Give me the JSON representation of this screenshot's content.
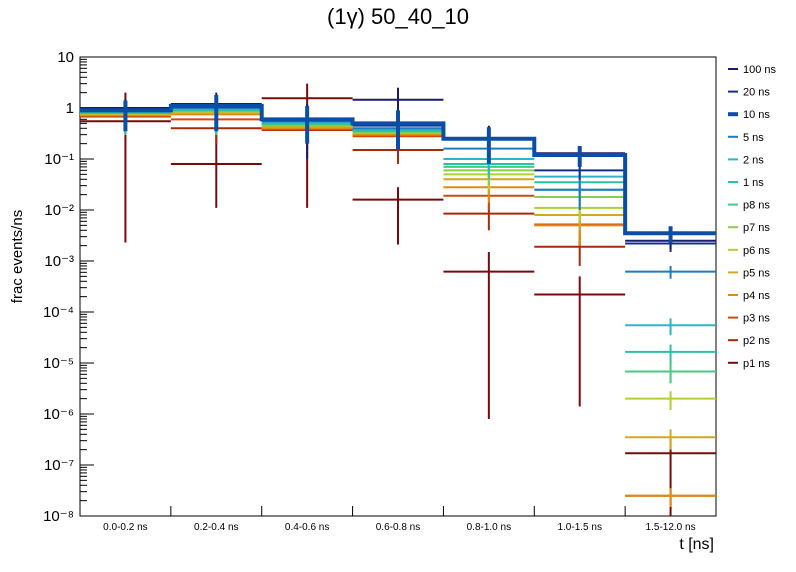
{
  "chart_data": {
    "type": "step-histogram",
    "title": "(1γ) 50_40_10",
    "xlabel": "t [ns]",
    "ylabel": "frac events/ns",
    "yscale": "log",
    "ylim": [
      1e-08,
      10
    ],
    "y_tick_labels": [
      "10⁻⁸",
      "10⁻⁷",
      "10⁻⁶",
      "10⁻⁵",
      "10⁻⁴",
      "10⁻³",
      "10⁻²",
      "10⁻¹",
      "1",
      "10"
    ],
    "y_tick_exponents": [
      -8,
      -7,
      -6,
      -5,
      -4,
      -3,
      -2,
      -1,
      0,
      1
    ],
    "categories": [
      "0.0-0.2 ns",
      "0.2-0.4 ns",
      "0.4-0.6 ns",
      "0.6-0.8 ns",
      "0.8-1.0 ns",
      "1.0-1.5 ns",
      "1.5-12.0 ns"
    ],
    "legend_position": "right",
    "series": [
      {
        "name": "100 ns",
        "color": "#1a1a6e",
        "values": [
          1.0,
          1.2,
          0.6,
          1.45,
          0.25,
          0.13,
          0.0025
        ],
        "width": 2,
        "err_lo": [
          0.4,
          0.4,
          0.1,
          0.15,
          0.1,
          0.09,
          0.0017
        ],
        "err_hi": [
          1.5,
          2.0,
          1.2,
          2.5,
          0.45,
          0.17,
          0.0035
        ]
      },
      {
        "name": "20 ns",
        "color": "#13318a",
        "values": [
          0.95,
          1.15,
          0.58,
          0.45,
          0.25,
          0.06,
          0.0022
        ],
        "width": 2,
        "err_lo": [
          0.4,
          0.4,
          0.2,
          0.15,
          0.1,
          0.04,
          0.0015
        ],
        "err_hi": [
          1.5,
          1.8,
          1.0,
          0.8,
          0.4,
          0.09,
          0.003
        ]
      },
      {
        "name": "10 ns",
        "color": "#0b4ea8",
        "values": [
          0.9,
          1.1,
          0.6,
          0.5,
          0.25,
          0.12,
          0.0035
        ],
        "width": 4,
        "err_lo": [
          0.35,
          0.35,
          0.2,
          0.15,
          0.08,
          0.07,
          0.0022
        ],
        "err_hi": [
          1.4,
          1.8,
          1.1,
          0.9,
          0.42,
          0.18,
          0.0048
        ]
      },
      {
        "name": "5 ns",
        "color": "#1f7bbf",
        "values": [
          0.88,
          1.0,
          0.55,
          0.4,
          0.16,
          0.025,
          0.00062
        ],
        "width": 2,
        "err_lo": [
          0.35,
          0.35,
          0.2,
          0.15,
          0.08,
          0.01,
          0.00045
        ],
        "err_hi": [
          1.3,
          1.6,
          0.95,
          0.7,
          0.25,
          0.04,
          0.0008
        ]
      },
      {
        "name": "2 ns",
        "color": "#2bb5c9",
        "values": [
          0.85,
          0.95,
          0.52,
          0.38,
          0.1,
          0.045,
          5.5e-05
        ],
        "width": 2,
        "err_lo": [
          0.35,
          0.35,
          0.2,
          0.15,
          0.06,
          0.02,
          3.5e-05
        ],
        "err_hi": [
          1.3,
          1.5,
          0.9,
          0.65,
          0.15,
          0.07,
          7.5e-05
        ]
      },
      {
        "name": "1 ns",
        "color": "#29c2a6",
        "values": [
          0.82,
          0.92,
          0.5,
          0.36,
          0.08,
          0.035,
          1.65e-05
        ],
        "width": 2,
        "err_lo": [
          0.3,
          0.3,
          0.2,
          0.15,
          0.05,
          0.02,
          1e-05
        ],
        "err_hi": [
          1.2,
          1.4,
          0.85,
          0.6,
          0.12,
          0.05,
          2.3e-05
        ]
      },
      {
        "name": "p8 ns",
        "color": "#49c981",
        "values": [
          0.8,
          0.9,
          0.48,
          0.35,
          0.07,
          0.025,
          6.8e-06
        ],
        "width": 2,
        "err_lo": [
          0.3,
          0.3,
          0.2,
          0.15,
          0.04,
          0.015,
          4e-06
        ],
        "err_hi": [
          1.2,
          1.4,
          0.8,
          0.6,
          0.1,
          0.035,
          1e-05
        ]
      },
      {
        "name": "p7 ns",
        "color": "#86cf4a",
        "values": [
          0.8,
          0.88,
          0.46,
          0.34,
          0.06,
          0.018,
          6.8e-06
        ],
        "width": 2,
        "err_lo": [
          0.3,
          0.3,
          0.2,
          0.15,
          0.03,
          0.01,
          4e-06
        ],
        "err_hi": [
          1.2,
          1.3,
          0.8,
          0.55,
          0.09,
          0.028,
          1e-05
        ]
      },
      {
        "name": "p6 ns",
        "color": "#b5cf2e",
        "values": [
          0.78,
          0.85,
          0.45,
          0.33,
          0.05,
          0.011,
          2e-06
        ],
        "width": 2,
        "err_lo": [
          0.3,
          0.3,
          0.2,
          0.15,
          0.025,
          0.006,
          1.2e-06
        ],
        "err_hi": [
          1.1,
          1.3,
          0.75,
          0.55,
          0.075,
          0.017,
          2.8e-06
        ]
      },
      {
        "name": "p5 ns",
        "color": "#d4a81e",
        "values": [
          0.75,
          0.8,
          0.43,
          0.32,
          0.04,
          0.008,
          3.5e-07
        ],
        "width": 2,
        "err_lo": [
          0.3,
          0.3,
          0.2,
          0.15,
          0.02,
          0.004,
          2e-07
        ],
        "err_hi": [
          1.1,
          1.2,
          0.7,
          0.5,
          0.06,
          0.012,
          5e-07
        ]
      },
      {
        "name": "p4 ns",
        "color": "#e08a12",
        "values": [
          0.72,
          0.75,
          0.4,
          0.3,
          0.028,
          0.005,
          2.5e-08
        ],
        "width": 2,
        "err_lo": [
          0.3,
          0.3,
          0.2,
          0.15,
          0.014,
          0.002,
          1.5e-08
        ],
        "err_hi": [
          1.0,
          1.1,
          0.65,
          0.48,
          0.045,
          0.008,
          3.5e-08
        ]
      },
      {
        "name": "p3 ns",
        "color": "#cc4a0a",
        "values": [
          0.7,
          0.6,
          0.38,
          0.28,
          0.019,
          0.0052,
          2.5e-08
        ],
        "width": 2,
        "err_lo": [
          0.3,
          0.3,
          0.2,
          0.15,
          0.01,
          0.002,
          1.5e-08
        ],
        "err_hi": [
          1.0,
          1.0,
          0.6,
          0.45,
          0.03,
          0.009,
          3.5e-08
        ]
      },
      {
        "name": "p2 ns",
        "color": "#a82a0a",
        "values": [
          0.68,
          0.4,
          0.37,
          0.15,
          0.0085,
          0.0019,
          0.0
        ],
        "width": 2,
        "err_lo": [
          0.3,
          0.2,
          0.15,
          0.08,
          0.004,
          0.0008,
          0.0
        ],
        "err_hi": [
          1.0,
          0.8,
          0.6,
          0.25,
          0.013,
          0.003,
          0.0
        ]
      },
      {
        "name": "p1 ns",
        "color": "#7a0a0a",
        "values": [
          0.55,
          0.08,
          1.55,
          0.016,
          0.00062,
          0.00022,
          1.7e-07
        ],
        "width": 2,
        "err_lo": [
          0.0023,
          0.011,
          0.011,
          0.0021,
          8e-07,
          1.4e-06,
          1e-08
        ],
        "err_hi": [
          2.0,
          0.35,
          3.0,
          0.028,
          0.0015,
          0.0005,
          3.3e-07
        ]
      }
    ]
  }
}
